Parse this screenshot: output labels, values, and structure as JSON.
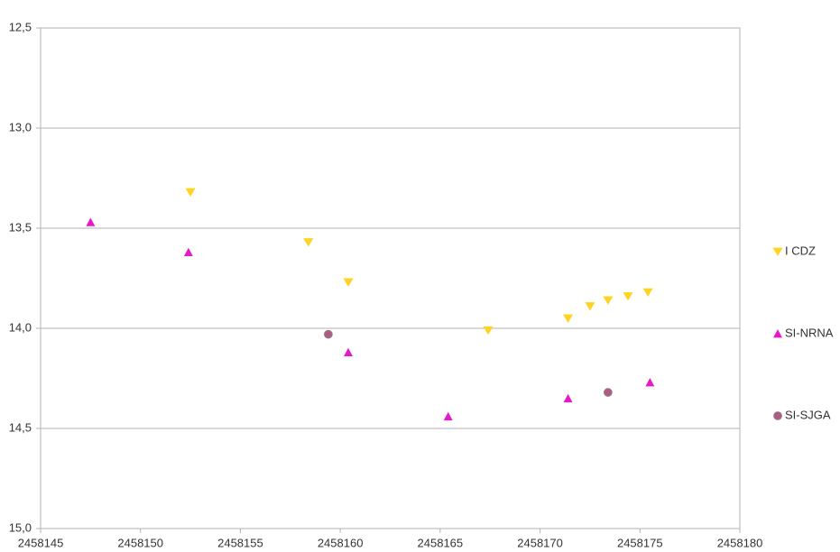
{
  "chart_data": {
    "type": "scatter",
    "xlim": [
      2458145,
      2458180
    ],
    "xticks": [
      2458145,
      2458150,
      2458155,
      2458160,
      2458165,
      2458170,
      2458175,
      2458180
    ],
    "ylim": [
      12.5,
      15.0
    ],
    "y_reversed": true,
    "yticks": [
      {
        "value": 12.5,
        "label": "12,5"
      },
      {
        "value": 13.0,
        "label": "13,0"
      },
      {
        "value": 13.5,
        "label": "13,5"
      },
      {
        "value": 14.0,
        "label": "14,0"
      },
      {
        "value": 14.5,
        "label": "14,5"
      },
      {
        "value": 15.0,
        "label": "15,0"
      }
    ],
    "grid": true,
    "legend": "right",
    "series": [
      {
        "name": "I CDZ",
        "color": "#ffd320",
        "marker": "triangle-down",
        "x": [
          2458152.5,
          2458158.4,
          2458160.4,
          2458167.4,
          2458171.4,
          2458172.5,
          2458173.4,
          2458174.4,
          2458175.4
        ],
        "values": [
          13.32,
          13.57,
          13.77,
          14.01,
          13.95,
          13.89,
          13.86,
          13.84,
          13.82
        ]
      },
      {
        "name": "SI-NRNA",
        "color": "#e619c9",
        "marker": "triangle-up",
        "x": [
          2458147.5,
          2458152.4,
          2458160.4,
          2458165.4,
          2458171.4,
          2458175.5
        ],
        "values": [
          13.47,
          13.62,
          14.12,
          14.44,
          14.35,
          14.27
        ]
      },
      {
        "name": "SI-SJGA",
        "color": "#b05a86",
        "marker": "circle",
        "x": [
          2458159.4,
          2458173.4
        ],
        "values": [
          14.03,
          14.32
        ]
      }
    ]
  }
}
